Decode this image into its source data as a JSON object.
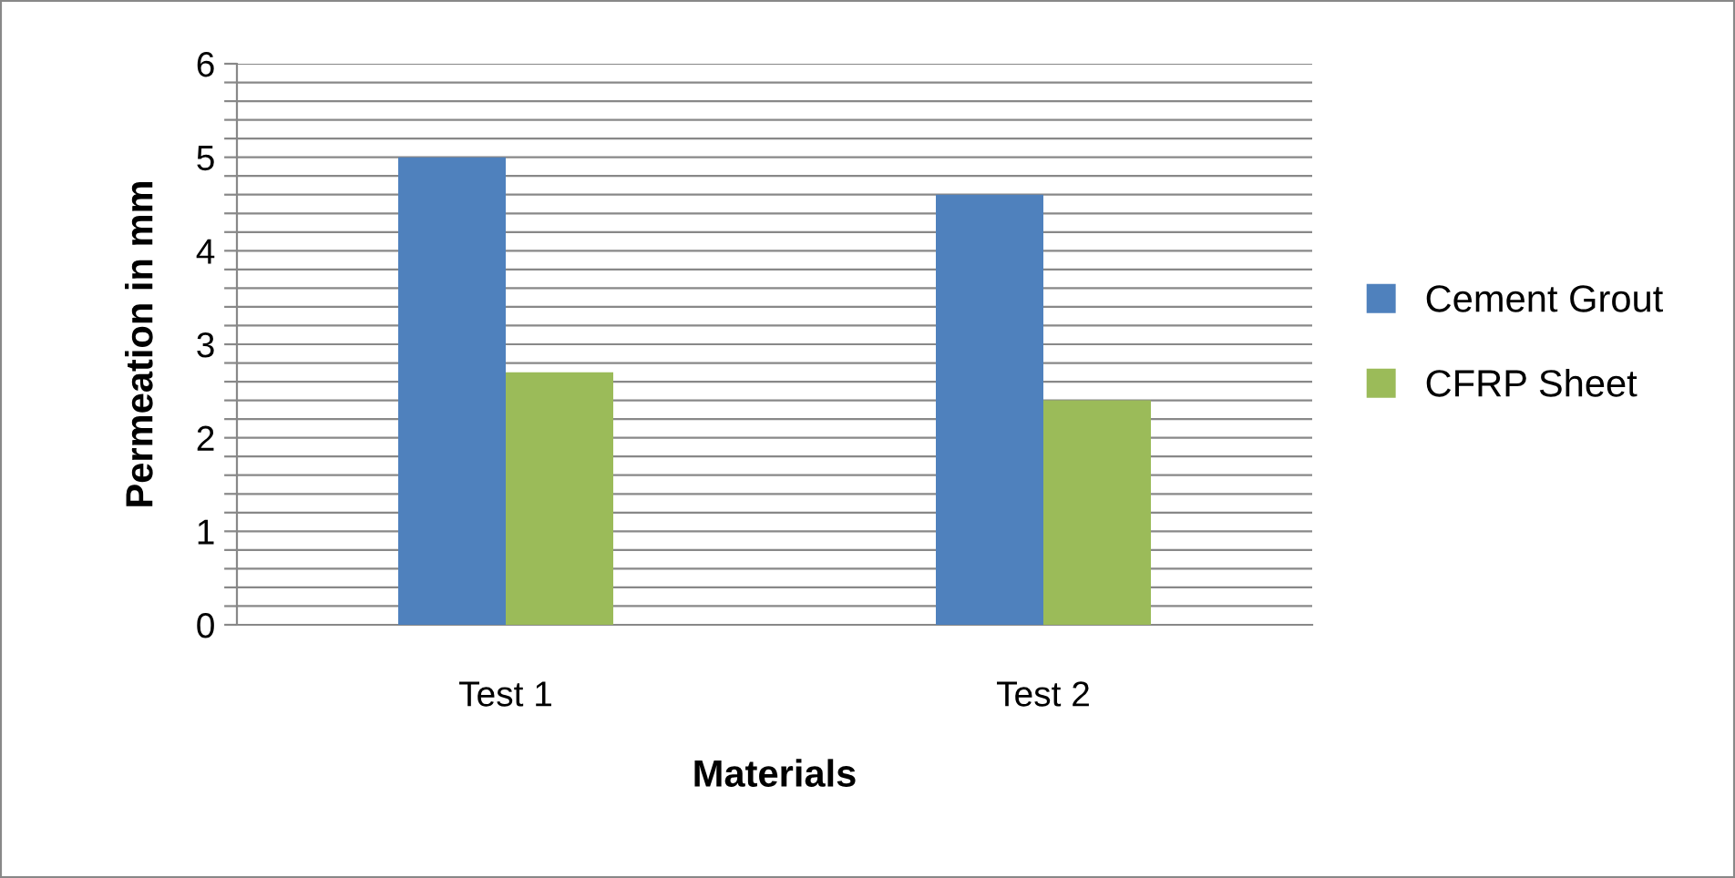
{
  "chart_data": {
    "type": "bar",
    "xlabel": "Materials",
    "ylabel": "Permeation in mm",
    "categories": [
      "Test 1",
      "Test 2"
    ],
    "series": [
      {
        "name": "Cement Grout",
        "color": "#4f81bd",
        "values": [
          5.0,
          4.6
        ]
      },
      {
        "name": "CFRP Sheet",
        "color": "#9bbb59",
        "values": [
          2.7,
          2.4
        ]
      }
    ],
    "ylim": [
      0,
      6
    ],
    "yticks": [
      0,
      {
        "value": 0.2,
        "label": null
      },
      {
        "value": 0.4,
        "label": null
      },
      {
        "value": 0.6,
        "label": null
      },
      {
        "value": 0.8,
        "label": null
      },
      1,
      {
        "value": 1.2,
        "label": null
      },
      {
        "value": 1.4,
        "label": null
      },
      {
        "value": 1.6,
        "label": null
      },
      {
        "value": 1.8,
        "label": null
      },
      2,
      {
        "value": 2.2,
        "label": null
      },
      {
        "value": 2.4,
        "label": null
      },
      {
        "value": 2.6,
        "label": null
      },
      {
        "value": 2.8,
        "label": null
      },
      3,
      {
        "value": 3.2,
        "label": null
      },
      {
        "value": 3.4,
        "label": null
      },
      {
        "value": 3.6,
        "label": null
      },
      {
        "value": 3.8,
        "label": null
      },
      4,
      {
        "value": 4.2,
        "label": null
      },
      {
        "value": 4.4,
        "label": null
      },
      {
        "value": 4.6,
        "label": null
      },
      {
        "value": 4.8,
        "label": null
      },
      5,
      {
        "value": 5.2,
        "label": null
      },
      {
        "value": 5.4,
        "label": null
      },
      {
        "value": 5.6,
        "label": null
      },
      {
        "value": 5.8,
        "label": null
      },
      6
    ],
    "grid": "y",
    "legend": "right"
  }
}
